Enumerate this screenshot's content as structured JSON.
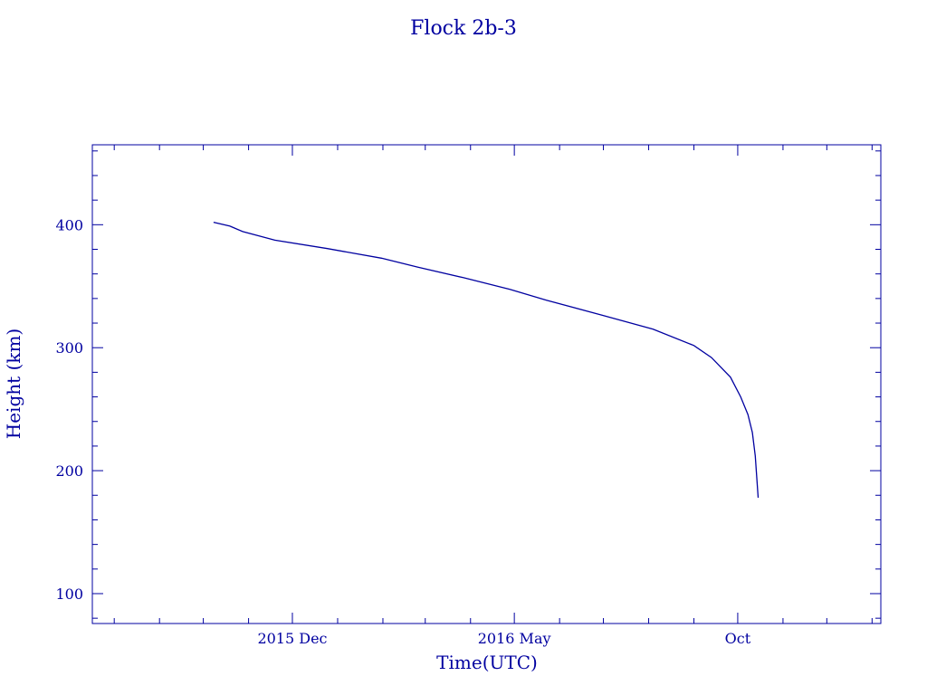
{
  "chart_data": {
    "type": "line",
    "title": "Flock 2b-3",
    "xlabel": "Time(UTC)",
    "ylabel": "Height (km)",
    "xlim": [
      "2015-07-17",
      "2017-01-07"
    ],
    "ylim": [
      75.7,
      465
    ],
    "x_major_ticks": [
      {
        "date": "2015-12-01",
        "label": "2015 Dec"
      },
      {
        "date": "2016-05-01",
        "label": "2016 May"
      },
      {
        "date": "2016-10-01",
        "label": "Oct"
      }
    ],
    "x_minor_ticks": "monthly",
    "y_major_ticks": [
      100,
      200,
      300,
      400
    ],
    "y_tick_labels": [
      "100",
      "200",
      "300",
      "400"
    ],
    "y_minor_step": 20,
    "grid": false,
    "color": "#0000a0",
    "series": [
      {
        "x": [
          "2015-10-08",
          "2015-10-19",
          "2015-10-28",
          "2015-11-19",
          "2015-12-25",
          "2016-01-31",
          "2016-02-25",
          "2016-03-27",
          "2016-04-28",
          "2016-05-23",
          "2016-06-30",
          "2016-08-04",
          "2016-09-01",
          "2016-09-13",
          "2016-09-26",
          "2016-10-03",
          "2016-10-08",
          "2016-10-11",
          "2016-10-13",
          "2016-10-14",
          "2016-10-15"
        ],
        "y": [
          402,
          399,
          394.4,
          387.4,
          380.6,
          372.8,
          365.5,
          357,
          347.4,
          338.6,
          326.5,
          315,
          301.8,
          292,
          276,
          260,
          245.6,
          231,
          212,
          195,
          178
        ]
      }
    ]
  }
}
